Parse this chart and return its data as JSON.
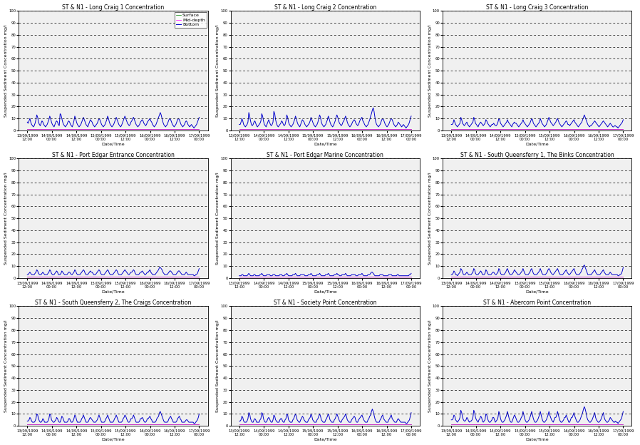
{
  "titles": [
    "ST & N1 - Long Craig 1 Concentration",
    "ST & N1 - Long Craig 2 Concentration",
    "ST & N1 - Long Craig 3 Concentration",
    "ST & N1 - Port Edgar Entrance Concentration",
    "ST & N1 - Port Edgar Marine Concentration",
    "ST & N1 - South Queensferry 1, The Binks Concentration",
    "ST & N1 - South Queensferry 2, The Craigs Concentration",
    "ST & N1 - Society Point Concentration",
    "ST & N1 - Abercorn Point Concentration"
  ],
  "ylabel": "Suspended Sediment Concentration mg/l",
  "xlabel": "Date/Time",
  "ylim": [
    0,
    100
  ],
  "yticks": [
    0,
    10,
    20,
    30,
    40,
    50,
    60,
    70,
    80,
    90,
    100
  ],
  "legend_labels": [
    "Surface",
    "Mid-depth",
    "Bottom"
  ],
  "legend_colors": [
    "#008000",
    "#ff00ff",
    "#0000cd"
  ],
  "xtick_labels": [
    "13/09/1999\n12:00",
    "14/09/1999\n00:00",
    "14/09/1999\n12:00",
    "15/09/1999\n00:00",
    "15/09/1999\n12:00",
    "16/09/1999\n00:00",
    "16/09/1999\n12:00",
    "17/09/1999\n00:00"
  ],
  "num_points": 200,
  "surface_color": "#008000",
  "middepth_color": "#ff00ff",
  "bottom_color": "#0000cd",
  "background_color": "#ffffff",
  "plot_bg_color": "#f0f0f0",
  "grid_color": "#000000",
  "grid_style": "--",
  "line_width": 0.7,
  "title_fontsize": 5.5,
  "label_fontsize": 4.5,
  "tick_fontsize": 3.8,
  "legend_fontsize": 4.5,
  "subplot_data": {
    "lc1_bottom": [
      7,
      6,
      8,
      10,
      7,
      5,
      4,
      3,
      4,
      6,
      9,
      13,
      11,
      7,
      5,
      4,
      6,
      8,
      7,
      5,
      4,
      3,
      4,
      5,
      7,
      9,
      12,
      10,
      7,
      5,
      4,
      3,
      5,
      7,
      8,
      7,
      5,
      4,
      14,
      13,
      10,
      7,
      5,
      4,
      3,
      4,
      5,
      7,
      8,
      7,
      5,
      4,
      3,
      5,
      8,
      12,
      10,
      7,
      5,
      4,
      3,
      4,
      5,
      7,
      9,
      11,
      9,
      7,
      5,
      4,
      3,
      5,
      7,
      9,
      8,
      7,
      5,
      4,
      3,
      4,
      5,
      6,
      8,
      10,
      9,
      7,
      5,
      4,
      3,
      4,
      5,
      7,
      9,
      12,
      10,
      7,
      5,
      4,
      3,
      4,
      5,
      7,
      9,
      11,
      9,
      7,
      5,
      4,
      3,
      4,
      6,
      8,
      10,
      12,
      10,
      8,
      6,
      5,
      4,
      5,
      7,
      8,
      10,
      11,
      9,
      7,
      5,
      4,
      3,
      4,
      5,
      7,
      8,
      9,
      8,
      6,
      5,
      4,
      5,
      7,
      8,
      9,
      10,
      8,
      7,
      5,
      4,
      3,
      4,
      5,
      7,
      9,
      11,
      13,
      15,
      13,
      10,
      7,
      5,
      4,
      3,
      4,
      5,
      7,
      9,
      10,
      9,
      7,
      5,
      4,
      3,
      4,
      5,
      7,
      9,
      10,
      9,
      7,
      5,
      4,
      3,
      4,
      5,
      7,
      8,
      7,
      5,
      4,
      3,
      4,
      5,
      4,
      3,
      2,
      3,
      4,
      5,
      7,
      9,
      11
    ],
    "lc2_bottom": [
      5,
      5,
      7,
      10,
      8,
      5,
      4,
      3,
      4,
      5,
      7,
      15,
      12,
      8,
      5,
      4,
      5,
      7,
      8,
      6,
      4,
      3,
      4,
      5,
      6,
      8,
      14,
      12,
      8,
      5,
      4,
      3,
      5,
      7,
      9,
      7,
      5,
      4,
      5,
      7,
      16,
      14,
      9,
      6,
      4,
      3,
      4,
      5,
      6,
      8,
      7,
      5,
      4,
      5,
      8,
      13,
      11,
      7,
      5,
      4,
      3,
      4,
      5,
      7,
      9,
      12,
      10,
      7,
      5,
      4,
      3,
      5,
      7,
      9,
      8,
      7,
      5,
      4,
      3,
      4,
      5,
      6,
      8,
      11,
      9,
      7,
      5,
      4,
      3,
      4,
      5,
      7,
      10,
      13,
      11,
      7,
      5,
      4,
      3,
      4,
      5,
      7,
      9,
      12,
      10,
      7,
      5,
      4,
      3,
      4,
      6,
      8,
      11,
      13,
      11,
      8,
      6,
      5,
      4,
      5,
      7,
      8,
      10,
      12,
      10,
      7,
      5,
      4,
      3,
      4,
      5,
      7,
      8,
      9,
      8,
      6,
      5,
      4,
      5,
      7,
      9,
      10,
      11,
      8,
      7,
      5,
      4,
      3,
      4,
      5,
      7,
      9,
      12,
      14,
      17,
      19,
      16,
      11,
      7,
      5,
      4,
      3,
      4,
      5,
      7,
      9,
      10,
      9,
      7,
      5,
      4,
      3,
      4,
      5,
      7,
      9,
      10,
      9,
      7,
      5,
      4,
      3,
      4,
      5,
      7,
      6,
      5,
      4,
      3,
      4,
      5,
      4,
      3,
      2,
      3,
      4,
      5,
      7,
      10,
      12
    ],
    "lc3_bottom": [
      5,
      5,
      6,
      9,
      7,
      5,
      4,
      3,
      4,
      5,
      6,
      11,
      9,
      6,
      5,
      4,
      5,
      6,
      7,
      5,
      4,
      3,
      4,
      5,
      6,
      7,
      11,
      9,
      6,
      5,
      4,
      3,
      5,
      6,
      7,
      6,
      5,
      4,
      5,
      6,
      9,
      8,
      6,
      5,
      4,
      3,
      4,
      5,
      5,
      6,
      5,
      4,
      4,
      5,
      7,
      10,
      9,
      6,
      5,
      4,
      3,
      4,
      5,
      6,
      7,
      9,
      7,
      6,
      5,
      4,
      3,
      5,
      6,
      7,
      6,
      6,
      5,
      4,
      3,
      4,
      5,
      6,
      7,
      9,
      7,
      6,
      5,
      4,
      3,
      4,
      5,
      6,
      8,
      10,
      9,
      6,
      5,
      4,
      3,
      4,
      5,
      6,
      7,
      10,
      8,
      6,
      5,
      4,
      3,
      4,
      5,
      7,
      9,
      11,
      9,
      7,
      6,
      5,
      4,
      5,
      6,
      7,
      9,
      10,
      8,
      6,
      5,
      4,
      3,
      4,
      5,
      6,
      7,
      8,
      7,
      5,
      5,
      4,
      5,
      6,
      7,
      8,
      9,
      7,
      6,
      5,
      4,
      3,
      4,
      5,
      6,
      7,
      9,
      11,
      13,
      11,
      9,
      7,
      5,
      4,
      3,
      4,
      4,
      5,
      6,
      7,
      8,
      7,
      6,
      5,
      4,
      3,
      4,
      5,
      6,
      7,
      8,
      7,
      6,
      5,
      4,
      3,
      4,
      5,
      6,
      5,
      4,
      3,
      3,
      4,
      4,
      3,
      3,
      2,
      3,
      4,
      5,
      6,
      7,
      9
    ],
    "pe_entrance_bottom": [
      3,
      3,
      4,
      5,
      4,
      3,
      3,
      3,
      3,
      4,
      5,
      7,
      6,
      4,
      3,
      3,
      3,
      4,
      5,
      4,
      3,
      3,
      3,
      3,
      4,
      5,
      7,
      6,
      4,
      3,
      3,
      3,
      4,
      5,
      6,
      5,
      3,
      3,
      3,
      4,
      6,
      5,
      4,
      3,
      3,
      3,
      3,
      4,
      5,
      5,
      4,
      3,
      3,
      4,
      5,
      7,
      6,
      4,
      3,
      3,
      3,
      3,
      4,
      5,
      6,
      7,
      6,
      4,
      3,
      3,
      3,
      4,
      5,
      6,
      5,
      5,
      4,
      3,
      3,
      3,
      4,
      5,
      6,
      7,
      6,
      4,
      3,
      3,
      3,
      3,
      4,
      5,
      6,
      7,
      6,
      4,
      3,
      3,
      3,
      3,
      4,
      5,
      6,
      7,
      6,
      4,
      3,
      3,
      3,
      3,
      4,
      5,
      6,
      7,
      6,
      5,
      4,
      3,
      3,
      4,
      5,
      5,
      6,
      7,
      6,
      4,
      3,
      3,
      3,
      3,
      4,
      5,
      5,
      6,
      5,
      4,
      3,
      3,
      4,
      5,
      5,
      6,
      7,
      5,
      4,
      3,
      3,
      3,
      3,
      4,
      5,
      6,
      7,
      9,
      9,
      8,
      7,
      5,
      4,
      3,
      3,
      3,
      3,
      4,
      5,
      6,
      6,
      5,
      4,
      3,
      3,
      3,
      3,
      4,
      5,
      6,
      6,
      5,
      4,
      3,
      3,
      3,
      3,
      4,
      5,
      4,
      3,
      3,
      3,
      3,
      3,
      3,
      3,
      2,
      2,
      3,
      3,
      4,
      6,
      8
    ],
    "pe_marine_bottom": [
      2,
      2,
      2,
      3,
      3,
      2,
      2,
      2,
      2,
      2,
      3,
      4,
      3,
      2,
      2,
      2,
      2,
      3,
      3,
      2,
      2,
      2,
      2,
      2,
      3,
      3,
      4,
      3,
      2,
      2,
      2,
      2,
      3,
      3,
      3,
      3,
      2,
      2,
      2,
      3,
      3,
      3,
      2,
      2,
      2,
      2,
      2,
      3,
      3,
      3,
      2,
      2,
      2,
      3,
      3,
      4,
      3,
      2,
      2,
      2,
      2,
      2,
      3,
      3,
      3,
      4,
      3,
      2,
      2,
      2,
      2,
      3,
      3,
      3,
      3,
      3,
      2,
      2,
      2,
      2,
      3,
      3,
      3,
      4,
      3,
      2,
      2,
      2,
      2,
      2,
      3,
      3,
      3,
      4,
      3,
      2,
      2,
      2,
      2,
      2,
      3,
      3,
      3,
      4,
      3,
      2,
      2,
      2,
      2,
      2,
      3,
      3,
      3,
      4,
      3,
      3,
      2,
      2,
      2,
      3,
      3,
      3,
      3,
      4,
      3,
      2,
      2,
      2,
      2,
      2,
      3,
      3,
      3,
      3,
      3,
      2,
      2,
      2,
      3,
      3,
      3,
      3,
      4,
      3,
      2,
      2,
      2,
      2,
      2,
      3,
      3,
      3,
      4,
      5,
      5,
      4,
      3,
      2,
      2,
      2,
      2,
      2,
      2,
      3,
      3,
      3,
      3,
      2,
      2,
      2,
      2,
      2,
      2,
      3,
      3,
      3,
      3,
      2,
      2,
      2,
      2,
      2,
      2,
      3,
      3,
      2,
      2,
      2,
      2,
      2,
      2,
      2,
      2,
      2,
      2,
      2,
      2,
      3,
      3,
      4
    ],
    "sqb1_bottom": [
      3,
      3,
      4,
      6,
      5,
      3,
      3,
      2,
      3,
      4,
      5,
      8,
      7,
      5,
      3,
      3,
      3,
      4,
      5,
      4,
      3,
      3,
      3,
      3,
      4,
      5,
      8,
      7,
      4,
      3,
      3,
      3,
      4,
      5,
      6,
      5,
      3,
      3,
      3,
      4,
      7,
      6,
      4,
      3,
      3,
      3,
      3,
      4,
      5,
      5,
      4,
      3,
      3,
      4,
      5,
      8,
      7,
      4,
      3,
      3,
      3,
      3,
      4,
      5,
      7,
      8,
      6,
      4,
      3,
      3,
      3,
      4,
      5,
      7,
      6,
      5,
      4,
      3,
      3,
      3,
      4,
      5,
      6,
      8,
      6,
      4,
      3,
      3,
      3,
      3,
      4,
      5,
      7,
      8,
      6,
      4,
      3,
      3,
      3,
      3,
      4,
      5,
      6,
      8,
      6,
      4,
      3,
      3,
      3,
      3,
      4,
      5,
      7,
      8,
      7,
      5,
      4,
      3,
      3,
      4,
      5,
      6,
      7,
      8,
      6,
      4,
      3,
      3,
      3,
      3,
      4,
      5,
      6,
      7,
      5,
      4,
      3,
      3,
      4,
      5,
      6,
      7,
      8,
      6,
      4,
      3,
      3,
      3,
      3,
      4,
      5,
      7,
      8,
      10,
      11,
      9,
      7,
      5,
      3,
      3,
      3,
      3,
      3,
      4,
      5,
      6,
      7,
      5,
      4,
      3,
      3,
      3,
      3,
      4,
      5,
      6,
      7,
      5,
      4,
      3,
      3,
      3,
      3,
      4,
      5,
      4,
      3,
      3,
      3,
      3,
      3,
      3,
      3,
      2,
      2,
      3,
      3,
      4,
      6,
      9
    ],
    "sq2_bottom": [
      4,
      4,
      5,
      7,
      6,
      4,
      3,
      3,
      3,
      4,
      6,
      10,
      9,
      6,
      4,
      3,
      3,
      4,
      6,
      5,
      3,
      3,
      3,
      3,
      4,
      6,
      10,
      9,
      5,
      4,
      3,
      3,
      4,
      5,
      7,
      6,
      4,
      3,
      3,
      5,
      8,
      7,
      5,
      3,
      3,
      3,
      3,
      4,
      6,
      6,
      4,
      3,
      3,
      4,
      6,
      9,
      8,
      5,
      3,
      3,
      3,
      3,
      4,
      6,
      7,
      9,
      7,
      5,
      3,
      3,
      3,
      4,
      6,
      7,
      6,
      5,
      4,
      3,
      3,
      3,
      4,
      5,
      7,
      9,
      7,
      5,
      3,
      3,
      3,
      3,
      4,
      6,
      7,
      9,
      7,
      5,
      3,
      3,
      3,
      3,
      4,
      6,
      7,
      9,
      7,
      5,
      3,
      3,
      3,
      3,
      4,
      6,
      7,
      9,
      8,
      6,
      4,
      3,
      3,
      4,
      6,
      6,
      7,
      9,
      7,
      5,
      3,
      3,
      3,
      3,
      4,
      6,
      6,
      7,
      6,
      4,
      3,
      3,
      4,
      6,
      6,
      7,
      8,
      6,
      5,
      3,
      3,
      3,
      3,
      4,
      6,
      7,
      8,
      11,
      12,
      10,
      8,
      6,
      4,
      3,
      3,
      3,
      3,
      4,
      6,
      7,
      8,
      6,
      5,
      3,
      3,
      3,
      3,
      4,
      6,
      7,
      8,
      6,
      5,
      3,
      3,
      3,
      3,
      4,
      5,
      5,
      4,
      3,
      3,
      3,
      3,
      3,
      3,
      2,
      2,
      3,
      4,
      5,
      7,
      10
    ],
    "sp_bottom": [
      4,
      4,
      5,
      8,
      7,
      4,
      3,
      3,
      3,
      4,
      6,
      11,
      10,
      6,
      4,
      3,
      3,
      5,
      6,
      5,
      3,
      3,
      3,
      3,
      5,
      6,
      11,
      10,
      6,
      4,
      3,
      3,
      4,
      6,
      7,
      6,
      4,
      3,
      3,
      5,
      9,
      8,
      5,
      4,
      3,
      3,
      3,
      5,
      6,
      6,
      4,
      3,
      3,
      5,
      6,
      10,
      9,
      5,
      4,
      3,
      3,
      3,
      5,
      6,
      8,
      10,
      8,
      5,
      4,
      3,
      3,
      5,
      6,
      8,
      7,
      5,
      4,
      3,
      3,
      3,
      5,
      6,
      7,
      10,
      8,
      5,
      4,
      3,
      3,
      3,
      5,
      6,
      8,
      10,
      8,
      5,
      4,
      3,
      3,
      3,
      5,
      6,
      8,
      10,
      8,
      5,
      4,
      3,
      3,
      3,
      5,
      6,
      8,
      10,
      8,
      6,
      4,
      3,
      3,
      5,
      6,
      7,
      8,
      10,
      8,
      5,
      4,
      3,
      3,
      3,
      5,
      6,
      7,
      8,
      7,
      4,
      3,
      3,
      5,
      6,
      7,
      8,
      9,
      7,
      5,
      4,
      3,
      3,
      3,
      5,
      6,
      8,
      9,
      12,
      14,
      12,
      9,
      6,
      4,
      3,
      3,
      3,
      3,
      5,
      6,
      8,
      9,
      6,
      5,
      4,
      3,
      3,
      3,
      5,
      6,
      8,
      9,
      6,
      5,
      4,
      3,
      3,
      3,
      5,
      6,
      5,
      4,
      3,
      3,
      3,
      3,
      3,
      3,
      2,
      2,
      3,
      4,
      5,
      8,
      11
    ],
    "ap_bottom": [
      5,
      5,
      6,
      9,
      8,
      5,
      4,
      3,
      4,
      5,
      7,
      13,
      11,
      7,
      5,
      4,
      4,
      5,
      7,
      6,
      4,
      3,
      4,
      4,
      5,
      7,
      13,
      11,
      7,
      5,
      4,
      3,
      5,
      6,
      8,
      7,
      4,
      3,
      4,
      5,
      10,
      9,
      6,
      4,
      3,
      3,
      4,
      5,
      7,
      7,
      5,
      3,
      4,
      5,
      7,
      12,
      10,
      6,
      4,
      3,
      3,
      4,
      5,
      7,
      9,
      12,
      9,
      6,
      4,
      3,
      3,
      5,
      7,
      9,
      8,
      6,
      4,
      3,
      3,
      4,
      5,
      7,
      8,
      12,
      9,
      6,
      4,
      3,
      3,
      4,
      5,
      7,
      9,
      12,
      9,
      6,
      4,
      3,
      3,
      4,
      5,
      7,
      9,
      12,
      9,
      6,
      4,
      3,
      3,
      4,
      5,
      7,
      9,
      12,
      9,
      7,
      5,
      4,
      3,
      5,
      7,
      7,
      9,
      12,
      9,
      6,
      4,
      3,
      3,
      4,
      5,
      7,
      7,
      9,
      7,
      5,
      3,
      3,
      5,
      7,
      7,
      9,
      11,
      8,
      6,
      4,
      3,
      3,
      4,
      5,
      7,
      9,
      11,
      14,
      16,
      14,
      11,
      7,
      5,
      4,
      3,
      3,
      4,
      5,
      7,
      9,
      11,
      7,
      5,
      4,
      3,
      3,
      4,
      5,
      7,
      9,
      11,
      7,
      5,
      4,
      3,
      3,
      4,
      5,
      7,
      6,
      5,
      4,
      3,
      3,
      4,
      3,
      3,
      2,
      3,
      4,
      5,
      6,
      9,
      12
    ]
  }
}
